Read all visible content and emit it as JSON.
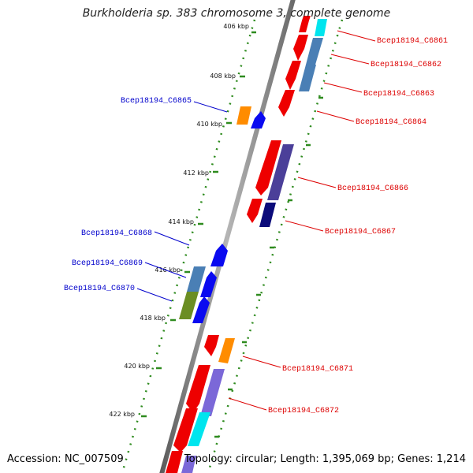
{
  "title": "Burkholderia sp. 383 chromosome 3, complete genome",
  "accession": "Accession: NC_007509",
  "summary": "Topology: circular; Length: 1,395,069 bp; Genes: 1,214",
  "colors": {
    "backbone": "#8a8a8a",
    "tick": "#2e8b1e",
    "forward_label": "#0000cc",
    "reverse_label": "#dd0000",
    "red": "#ee0000",
    "blue": "#0a0af0",
    "orange": "#ff8c00",
    "cyan": "#00e5ee",
    "steel": "#4a7fb5",
    "navy": "#0b0b7a",
    "slate": "#4b3f99",
    "olive": "#6b8e23",
    "lavender": "#7b68d8"
  },
  "scale_labels": [
    "406 kbp",
    "408 kbp",
    "410 kbp",
    "412 kbp",
    "414 kbp",
    "416 kbp",
    "418 kbp",
    "420 kbp",
    "422 kbp"
  ],
  "forward_labels": [
    "Bcep18194_C6865",
    "Bcep18194_C6868",
    "Bcep18194_C6869",
    "Bcep18194_C6870"
  ],
  "reverse_labels": [
    "Bcep18194_C6861",
    "Bcep18194_C6862",
    "Bcep18194_C6863",
    "Bcep18194_C6864",
    "Bcep18194_C6866",
    "Bcep18194_C6867",
    "Bcep18194_C6871",
    "Bcep18194_C6872"
  ]
}
